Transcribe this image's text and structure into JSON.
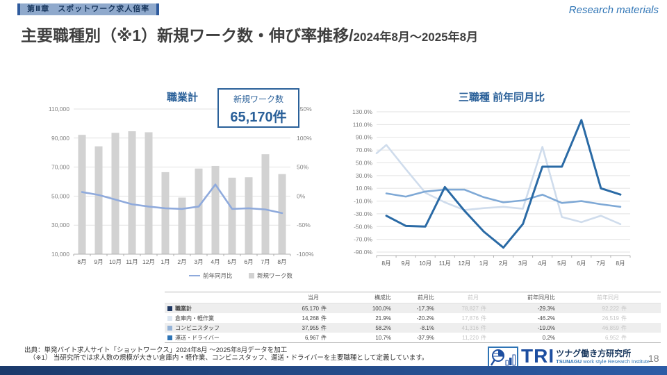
{
  "header": {
    "chapter_badge": "第Ⅱ章　スポットワーク求人倍率",
    "watermark": "Research materials",
    "title_main": "主要職種別（※1）新規ワーク数・伸び率推移/",
    "title_period": "2024年8月～2025年8月"
  },
  "callout": {
    "label": "新規ワーク数",
    "value": "65,170件"
  },
  "chart_data": [
    {
      "type": "bar+line",
      "title": "職業計",
      "categories": [
        "8月",
        "9月",
        "10月",
        "11月",
        "12月",
        "1月",
        "2月",
        "3月",
        "4月",
        "5月",
        "6月",
        "7月",
        "8月"
      ],
      "bar_series": {
        "name": "新規ワーク数",
        "color": "#d2d2d2",
        "values": [
          92222,
          84300,
          93600,
          94700,
          94000,
          66500,
          49000,
          69000,
          70800,
          62700,
          63000,
          78827,
          65170
        ]
      },
      "line_series": {
        "name": "前年同月比",
        "color": "#8faadc",
        "values_pct": [
          7,
          2,
          -6,
          -14,
          -18,
          -21,
          -22,
          -18,
          20,
          -22,
          -21,
          -23,
          -29.3
        ]
      },
      "left_axis": {
        "ticks": [
          "110,000",
          "90,000",
          "70,000",
          "50,000",
          "30,000",
          "10,000"
        ],
        "min": 10000,
        "max": 110000
      },
      "right_axis": {
        "ticks": [
          "150%",
          "100%",
          "50%",
          "0%",
          "-50%",
          "-100%"
        ],
        "min": -100,
        "max": 150
      },
      "legend_position": "bottom-right",
      "grid": true
    },
    {
      "type": "line",
      "title": "三職種 前年同月比",
      "categories": [
        "8月",
        "9月",
        "10月",
        "11月",
        "12月",
        "1月",
        "2月",
        "3月",
        "4月",
        "5月",
        "6月",
        "7月",
        "8月"
      ],
      "axis": {
        "ticks": [
          "130.0%",
          "110.0%",
          "90.0%",
          "70.0%",
          "50.0%",
          "30.0%",
          "10.0%",
          "-10.0%",
          "-30.0%",
          "-50.0%",
          "-70.0%",
          "-90.0%"
        ],
        "min": -90,
        "max": 130
      },
      "series": [
        {
          "name": "倉庫内・軽作業",
          "color": "#cfdcec",
          "lead_in_pct": 65,
          "values": [
            78,
            40,
            3,
            -12,
            -24,
            -21,
            -19,
            -22,
            75,
            -35,
            -43,
            -33,
            -46.2
          ]
        },
        {
          "name": "コンビニスタッフ",
          "color": "#7fa9d6",
          "values": [
            2,
            -3,
            5,
            8,
            8,
            -4,
            -12,
            -9,
            0,
            -13,
            -10,
            -15,
            -19
          ]
        },
        {
          "name": "運送・ドライバー",
          "color": "#2a6aa5",
          "values": [
            -33,
            -49,
            -50,
            12,
            -25,
            -58,
            -83,
            -46,
            44,
            44,
            117,
            10,
            0.2
          ]
        }
      ],
      "grid": true,
      "legend_position": "none"
    }
  ],
  "table": {
    "headers": [
      "当月",
      "構成比",
      "前月比",
      "前月",
      "前年同月比",
      "前年同月"
    ],
    "unit": "件",
    "rows": [
      {
        "label": "職業計",
        "color": "#1f3864",
        "current": "65,170",
        "share": "100.0%",
        "mom": "-17.3%",
        "prev": "78,827",
        "yoy": "-29.3%",
        "prev_year": "92,222"
      },
      {
        "label": "倉庫内・軽作業",
        "color": "#dce6f1",
        "current": "14,268",
        "share": "21.9%",
        "mom": "-20.2%",
        "prev": "17,876",
        "yoy": "-46.2%",
        "prev_year": "26,519"
      },
      {
        "label": "コンビニスタッフ",
        "color": "#95b3d7",
        "current": "37,955",
        "share": "58.2%",
        "mom": "-8.1%",
        "prev": "41,316",
        "yoy": "-19.0%",
        "prev_year": "46,859"
      },
      {
        "label": "運送・ドライバー",
        "color": "#2e74b5",
        "current": "6,967",
        "share": "10.7%",
        "mom": "-37.9%",
        "prev": "11,220",
        "yoy": "0.2%",
        "prev_year": "6,952"
      }
    ]
  },
  "footer": {
    "source": "出典：単発バイト求人サイト「ショットワークス」2024年8月 ～2025年8月データを加工",
    "note": "（※1） 当研究所では求人数の規模が大きい倉庫内・軽作業、コンビニスタッフ、運送・ドライバーを主要職種として定義しています。",
    "page_number": "18",
    "logo": {
      "acronym": "TRI",
      "name_jp": "ツナグ働き方研究所",
      "name_en_bold": "TSUNAGU",
      "name_en_rest": " work style Research Institute"
    }
  }
}
